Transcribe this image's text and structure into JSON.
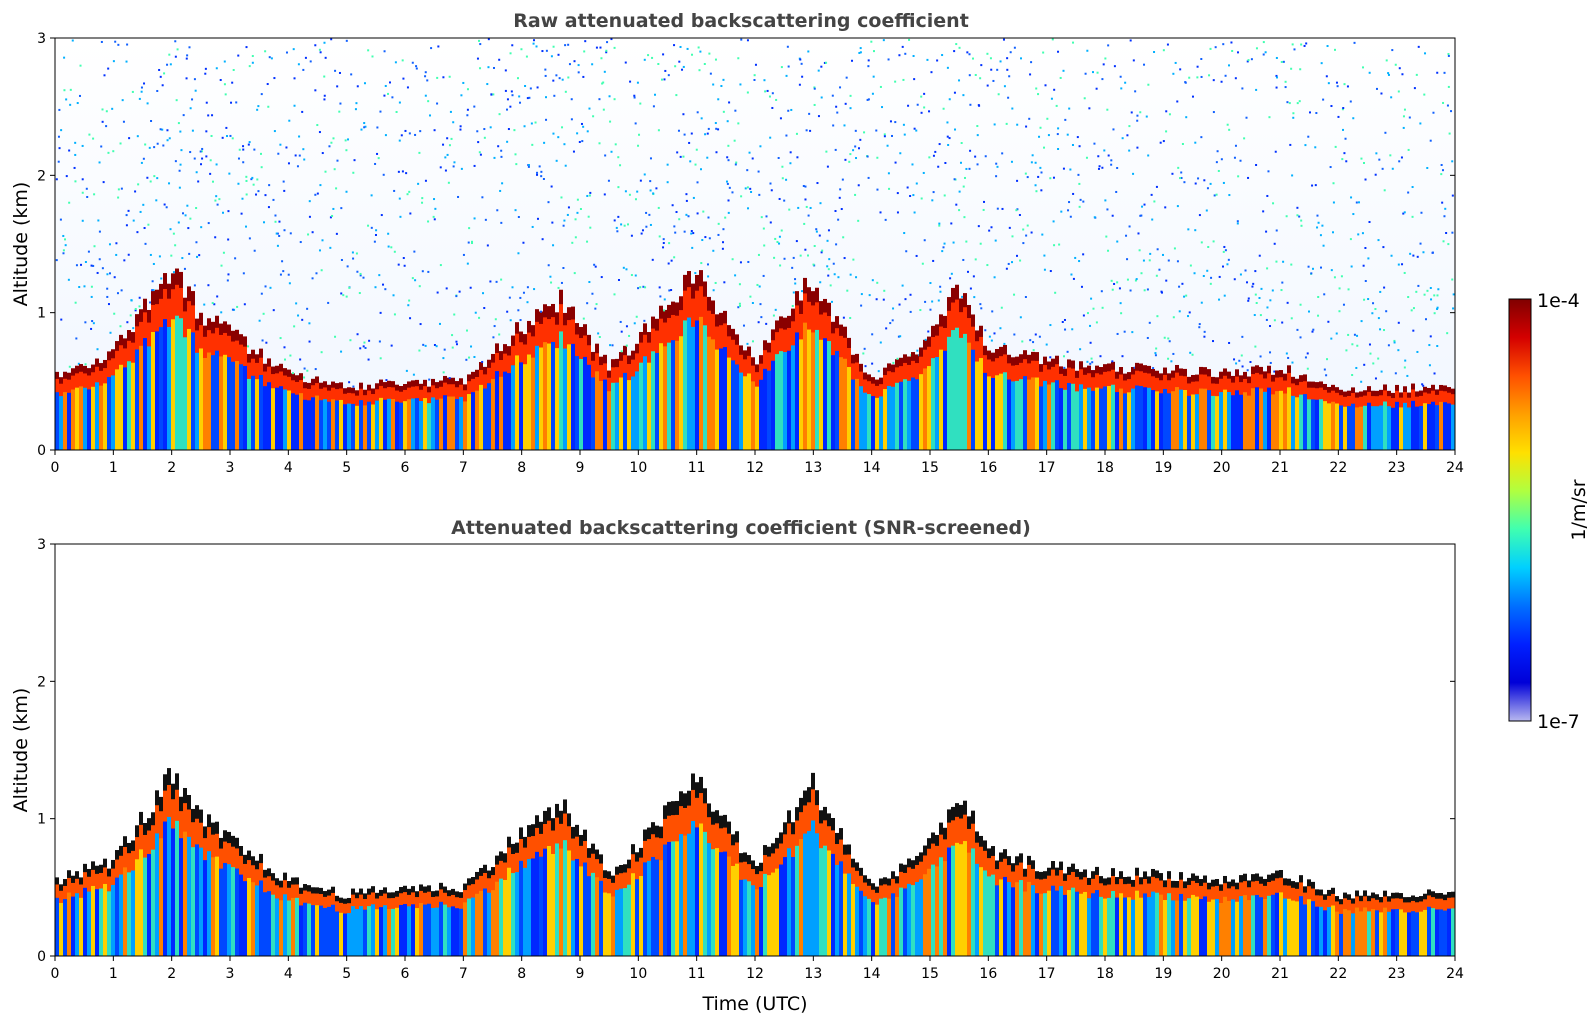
{
  "chart_data": [
    {
      "type": "heatmap",
      "title": "Raw attenuated backscattering coefficient",
      "xlabel": "",
      "ylabel": "Altitude (km)",
      "xlim": [
        0,
        24
      ],
      "ylim": [
        0,
        3
      ],
      "x_ticks": [
        "0",
        "1",
        "2",
        "3",
        "4",
        "5",
        "6",
        "7",
        "8",
        "9",
        "10",
        "11",
        "12",
        "13",
        "14",
        "15",
        "16",
        "17",
        "18",
        "19",
        "20",
        "21",
        "22",
        "23",
        "24"
      ],
      "y_ticks": [
        "0",
        "1",
        "2",
        "3"
      ],
      "screened": false,
      "layer_top_km": {
        "time_utc": [
          0,
          1,
          2,
          2.5,
          3,
          4,
          5,
          6,
          7,
          8,
          8.7,
          9.5,
          10,
          11,
          12,
          13,
          14,
          15,
          15.5,
          16,
          17,
          18,
          19,
          20,
          21,
          22,
          23,
          24
        ],
        "altitude_km": [
          0.55,
          0.7,
          1.3,
          1.0,
          0.85,
          0.55,
          0.45,
          0.5,
          0.5,
          0.9,
          1.1,
          0.6,
          0.8,
          1.3,
          0.65,
          1.25,
          0.5,
          0.8,
          1.2,
          0.75,
          0.65,
          0.6,
          0.6,
          0.55,
          0.6,
          0.45,
          0.45,
          0.45
        ]
      }
    },
    {
      "type": "heatmap",
      "title": "Attenuated backscattering coefficient (SNR-screened)",
      "xlabel": "Time (UTC)",
      "ylabel": "Altitude (km)",
      "xlim": [
        0,
        24
      ],
      "ylim": [
        0,
        3
      ],
      "x_ticks": [
        "0",
        "1",
        "2",
        "3",
        "4",
        "5",
        "6",
        "7",
        "8",
        "9",
        "10",
        "11",
        "12",
        "13",
        "14",
        "15",
        "16",
        "17",
        "18",
        "19",
        "20",
        "21",
        "22",
        "23",
        "24"
      ],
      "y_ticks": [
        "0",
        "1",
        "2",
        "3"
      ],
      "screened": true,
      "layer_top_km": {
        "time_utc": [
          0,
          1,
          2,
          2.5,
          3,
          4,
          5,
          6,
          7,
          8,
          8.7,
          9.5,
          10,
          11,
          12,
          13,
          14,
          15,
          15.5,
          16,
          17,
          18,
          19,
          20,
          21,
          22,
          23,
          24
        ],
        "altitude_km": [
          0.55,
          0.7,
          1.3,
          1.0,
          0.85,
          0.55,
          0.45,
          0.5,
          0.5,
          0.9,
          1.1,
          0.6,
          0.8,
          1.3,
          0.65,
          1.25,
          0.5,
          0.8,
          1.2,
          0.75,
          0.65,
          0.6,
          0.6,
          0.55,
          0.6,
          0.45,
          0.45,
          0.45
        ]
      }
    }
  ],
  "colorbar": {
    "max_label": "1e-4",
    "min_label": "1e-7",
    "unit_label": "1/m/sr",
    "colors": [
      "#800000",
      "#d40000",
      "#ff5000",
      "#ffa000",
      "#ffe000",
      "#b0ff40",
      "#40ffb0",
      "#00d0ff",
      "#0070ff",
      "#0020ff",
      "#0000d8",
      "#b8b8f0"
    ]
  }
}
